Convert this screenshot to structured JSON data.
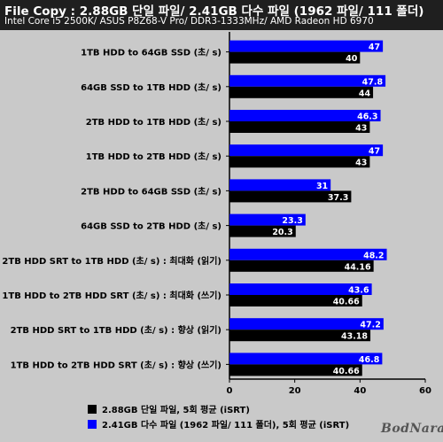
{
  "header": {
    "title": "File Copy : 2.88GB 단일 파일/ 2.41GB 다수 파일 (1962 파일/ 111 폴더)",
    "subtitle": "Intel Core i5 2500K/ ASUS P8Z68-V Pro/ DDR3-1333MHz/ AMD Radeon HD 6970"
  },
  "chart_data": {
    "type": "bar",
    "orientation": "horizontal",
    "categories": [
      "1TB HDD to 64GB SSD (초/ s)",
      "64GB SSD to 1TB HDD (초/ s)",
      "2TB HDD to 1TB HDD (초/ s)",
      "1TB HDD to 2TB HDD (초/ s)",
      "2TB HDD to 64GB SSD (초/ s)",
      "64GB SSD to 2TB HDD (초/ s)",
      "2TB HDD SRT to 1TB HDD (초/ s) : 최대화 (읽기)",
      "1TB HDD to 2TB HDD SRT (초/ s) : 최대화 (쓰기)",
      "2TB HDD SRT to 1TB HDD (초/ s) : 향상 (읽기)",
      "1TB HDD to 2TB HDD SRT (초/ s) : 향상 (쓰기)"
    ],
    "series": [
      {
        "name": "2.41GB 다수 파일 (1962 파일/ 111 폴더), 5회 평균 (iSRT)",
        "color": "#0000ff",
        "values": [
          47,
          47.8,
          46.3,
          47,
          31,
          23.3,
          48.2,
          43.6,
          47.2,
          46.8
        ],
        "labels": [
          "47",
          "47.8",
          "46.3",
          "47",
          "31",
          "23.3",
          "48.2",
          "43.6",
          "47.2",
          "46.8"
        ]
      },
      {
        "name": "2.88GB 단일 파일, 5회 평균 (iSRT)",
        "color": "#000000",
        "values": [
          40,
          44,
          43,
          43,
          37.3,
          20.3,
          44.16,
          40.66,
          43.18,
          40.66
        ],
        "labels": [
          "40",
          "44",
          "43",
          "43",
          "37.3",
          "20.3",
          "44.16",
          "40.66",
          "43.18",
          "40.66"
        ]
      }
    ],
    "xlim": [
      0,
      60
    ],
    "xticks": [
      "0",
      "20",
      "40",
      "60"
    ],
    "grid": false,
    "legend": [
      {
        "label": "2.88GB 단일 파일, 5회 평균 (iSRT)",
        "color": "#000000"
      },
      {
        "label": "2.41GB 다수 파일 (1962 파일/ 111 폴더), 5회 평균 (iSRT)",
        "color": "#0000ff"
      }
    ],
    "legend_position": "bottom",
    "background": "#c9c9c9",
    "header_background": "#1f1f1f"
  },
  "watermark": "BodNara"
}
